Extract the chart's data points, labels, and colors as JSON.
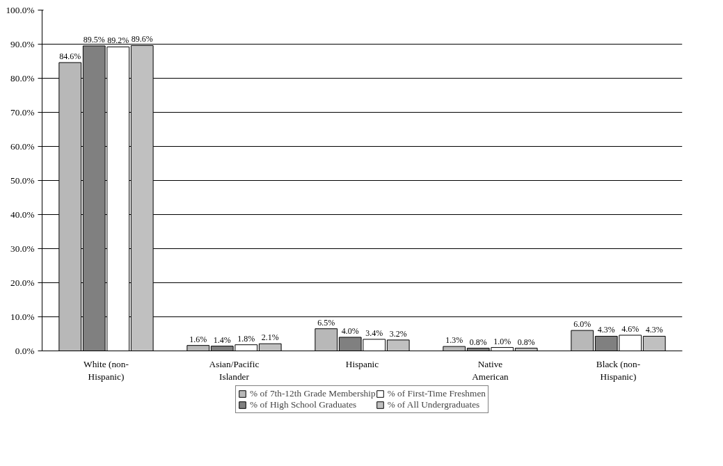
{
  "chart_data": {
    "type": "bar",
    "categories": [
      "White (non-Hispanic)",
      "Asian/Pacific Islander",
      "Hispanic",
      "Native American",
      "Black (non-Hispanic)"
    ],
    "series": [
      {
        "name": "% of 7th-12th Grade Membership",
        "color": "#b8b8b8",
        "values": [
          84.6,
          1.6,
          6.5,
          1.3,
          6.0
        ],
        "value_labels": [
          "84.6%",
          "1.6%",
          "6.5%",
          "1.3%",
          "6.0%"
        ]
      },
      {
        "name": "% of High School Graduates",
        "color": "#808080",
        "values": [
          89.5,
          1.4,
          4.0,
          0.8,
          4.3
        ],
        "value_labels": [
          "89.5%",
          "1.4%",
          "4.0%",
          "0.8%",
          "4.3%"
        ]
      },
      {
        "name": "% of First-Time Freshmen",
        "color": "#ffffff",
        "values": [
          89.2,
          1.8,
          3.4,
          1.0,
          4.6
        ],
        "value_labels": [
          "89.2%",
          "1.8%",
          "3.4%",
          "1.0%",
          "4.6%"
        ]
      },
      {
        "name": "% of All Undergraduates",
        "color": "#c0c0c0",
        "values": [
          89.6,
          2.1,
          3.2,
          0.8,
          4.3
        ],
        "value_labels": [
          "89.6%",
          "2.1%",
          "3.2%",
          "0.8%",
          "4.3%"
        ]
      }
    ],
    "ylim": [
      0,
      100
    ],
    "yticks": [
      {
        "value": 0,
        "label": "0.0%"
      },
      {
        "value": 10,
        "label": "10.0%"
      },
      {
        "value": 20,
        "label": "20.0%"
      },
      {
        "value": 30,
        "label": "30.0%"
      },
      {
        "value": 40,
        "label": "40.0%"
      },
      {
        "value": 50,
        "label": "50.0%"
      },
      {
        "value": 60,
        "label": "60.0%"
      },
      {
        "value": 70,
        "label": "70.0%"
      },
      {
        "value": 80,
        "label": "80.0%"
      },
      {
        "value": 90,
        "label": "90.0%"
      },
      {
        "value": 100,
        "label": "100.0%"
      }
    ],
    "grid": "y",
    "legend": "bottom"
  }
}
